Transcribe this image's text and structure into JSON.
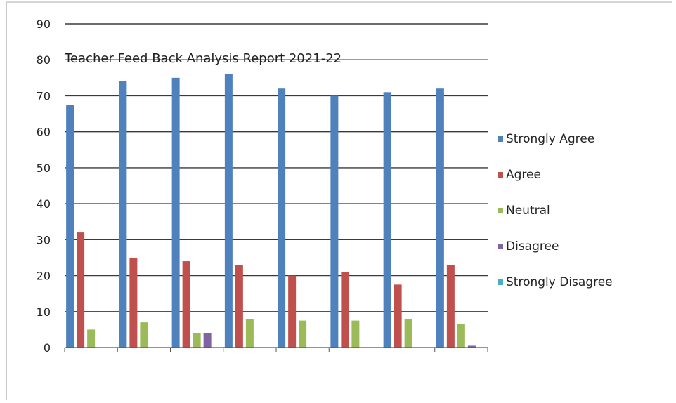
{
  "chart_data": {
    "type": "bar",
    "title": "Teacher Feed Back Analysis Report 2021-22",
    "categories": [
      "",
      "",
      "",
      "",
      "",
      "",
      "",
      ""
    ],
    "ylim": [
      0,
      90
    ],
    "yticks": [
      0,
      10,
      20,
      30,
      40,
      50,
      60,
      70,
      80,
      90
    ],
    "grid": true,
    "legend_position": "right",
    "series": [
      {
        "name": "Strongly Agree",
        "color": "#4f81bd",
        "values": [
          67.5,
          74,
          75,
          76,
          72,
          70,
          71,
          72
        ]
      },
      {
        "name": "Agree",
        "color": "#c0504d",
        "values": [
          32,
          25,
          24,
          23,
          20,
          21,
          17.5,
          23
        ]
      },
      {
        "name": "Neutral",
        "color": "#9bbb59",
        "values": [
          5,
          7,
          4,
          8,
          7.5,
          7.5,
          8,
          6.5
        ]
      },
      {
        "name": "Disagree",
        "color": "#8064a2",
        "values": [
          0,
          0,
          4,
          0,
          0,
          0,
          0,
          0.5
        ]
      },
      {
        "name": "Strongly Disagree",
        "color": "#4bacc6",
        "values": [
          0,
          0,
          0,
          0,
          0,
          0,
          0,
          0
        ]
      }
    ]
  }
}
